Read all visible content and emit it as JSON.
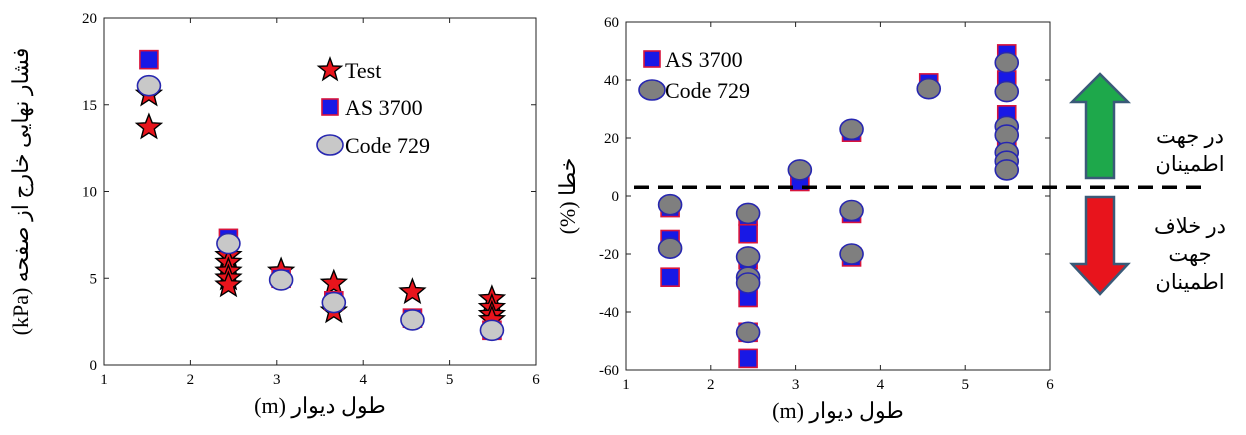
{
  "chart_data": [
    {
      "type": "scatter",
      "xlabel": "طول دیوار (m)",
      "ylabel": "فشار نهایی خارج از صفحه (kPa)",
      "xlim": [
        1,
        6
      ],
      "ylim": [
        0,
        20
      ],
      "xticks": [
        1,
        2,
        3,
        4,
        5,
        6
      ],
      "yticks": [
        0,
        5,
        10,
        15,
        20
      ],
      "grid": false,
      "legend_position": "top-right",
      "series": [
        {
          "name": "Test",
          "marker": "star",
          "color": "#e8141c",
          "edge": "#000000",
          "x": [
            1.52,
            1.52,
            2.44,
            2.44,
            2.44,
            2.44,
            2.44,
            3.05,
            3.66,
            3.66,
            4.57,
            5.49,
            5.49,
            5.49,
            5.49
          ],
          "y": [
            15.6,
            13.7,
            6.3,
            5.9,
            5.4,
            5.0,
            4.6,
            5.4,
            4.7,
            3.1,
            4.2,
            3.8,
            3.3,
            2.9,
            2.6
          ]
        },
        {
          "name": "AS 3700",
          "marker": "square",
          "color": "#1818e6",
          "edge": "#d8143c",
          "x": [
            1.52,
            2.44,
            3.05,
            3.66,
            4.57,
            5.49
          ],
          "y": [
            17.6,
            7.3,
            5.0,
            3.7,
            2.7,
            2.0
          ]
        },
        {
          "name": "Code 729",
          "marker": "circle",
          "color": "#c8c8c8",
          "edge": "#2727b0",
          "x": [
            1.52,
            2.44,
            3.05,
            3.66,
            4.57,
            5.49
          ],
          "y": [
            16.1,
            7.0,
            4.9,
            3.6,
            2.6,
            2.0
          ]
        }
      ]
    },
    {
      "type": "scatter",
      "xlabel": "طول دیوار (m)",
      "ylabel": "خطا (%)",
      "xlim": [
        1,
        6
      ],
      "ylim": [
        -60,
        60
      ],
      "xticks": [
        1,
        2,
        3,
        4,
        5,
        6
      ],
      "yticks": [
        -60,
        -40,
        -20,
        0,
        20,
        40,
        60
      ],
      "grid": false,
      "legend_position": "top-left",
      "reference_line_y": 3,
      "annotations": {
        "upper_label": "در جهت اطمینان",
        "lower_label": "در خلاف جهت اطمینان"
      },
      "series": [
        {
          "name": "AS 3700",
          "marker": "square",
          "color": "#1818e6",
          "edge": "#d8143c",
          "x": [
            1.52,
            1.52,
            1.52,
            2.44,
            2.44,
            2.44,
            2.44,
            2.44,
            2.44,
            3.05,
            3.66,
            3.66,
            3.66,
            4.57,
            5.49,
            5.49,
            5.49,
            5.49,
            5.49,
            5.49,
            5.49
          ],
          "y": [
            -4,
            -15,
            -28,
            -7,
            -13,
            -22,
            -35,
            -47,
            -56,
            5,
            22,
            -6,
            -21,
            39,
            49,
            40,
            28,
            20,
            16,
            13,
            10
          ]
        },
        {
          "name": "Code 729",
          "marker": "circle",
          "color": "#7f7f7f",
          "edge": "#2727b0",
          "x": [
            1.52,
            1.52,
            2.44,
            2.44,
            2.44,
            2.44,
            2.44,
            3.05,
            3.66,
            3.66,
            3.66,
            4.57,
            5.49,
            5.49,
            5.49,
            5.49,
            5.49,
            5.49,
            5.49
          ],
          "y": [
            -3,
            -18,
            -6,
            -21,
            -28,
            -47,
            -30,
            9,
            23,
            -5,
            -20,
            37,
            46,
            36,
            24,
            21,
            15,
            12,
            9
          ]
        }
      ]
    }
  ]
}
